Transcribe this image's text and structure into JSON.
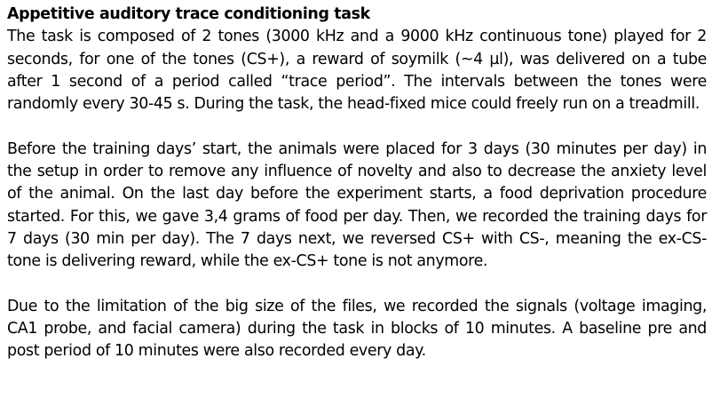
{
  "document": {
    "title": "Appetitive auditory trace conditioning task",
    "paragraphs": [
      "The task is composed of 2 tones (3000 kHz and a 9000 kHz continuous tone) played for 2 seconds, for one of the tones (CS+), a reward of soymilk (~4 µl), was delivered on a tube after 1 second of a period called “trace period”. The intervals between the tones were randomly every 30-45 s. During the task, the head-fixed mice could freely run on a treadmill.",
      "Before the training days’ start, the animals were placed for 3 days (30 minutes per day) in the setup in order to remove any influence of novelty and also to decrease the anxiety level of the animal. On the last day before the experiment starts, a food deprivation procedure started. For this, we gave 3,4 grams of food per day. Then, we recorded the training days for 7 days (30 min per day). The 7 days next, we reversed CS+ with CS-, meaning the ex-CS- tone is delivering reward, while the ex-CS+ tone is not anymore.",
      "Due to the limitation of the big size of the files, we recorded the signals (voltage imaging, CA1 probe, and facial camera) during the task in blocks of 10 minutes. A baseline pre and post period of 10 minutes were also recorded every day."
    ]
  }
}
